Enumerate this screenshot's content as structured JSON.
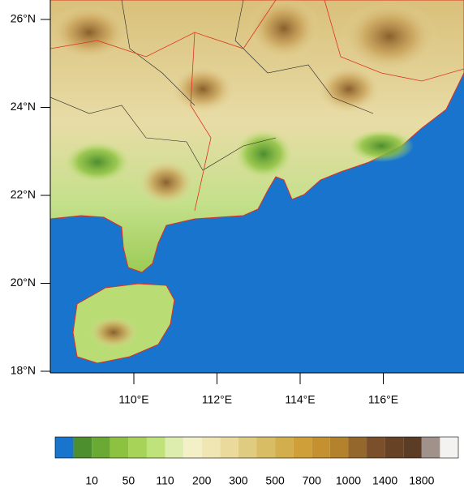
{
  "map": {
    "lat_labels": [
      "26°N",
      "24°N",
      "22°N",
      "20°N",
      "18°N"
    ],
    "lon_labels": [
      "110°E",
      "112°E",
      "114°E",
      "116°E"
    ],
    "colorbar": {
      "colors": [
        "#1874cd",
        "#4d8e2e",
        "#6aa934",
        "#8cc23f",
        "#a7d458",
        "#bfe27a",
        "#dcedae",
        "#f3f0c8",
        "#f0e6b4",
        "#eadb9c",
        "#e0cc80",
        "#d8bd64",
        "#d3ae4c",
        "#cfa03a",
        "#c59130",
        "#b4822c",
        "#94672c",
        "#7b4f29",
        "#674224",
        "#5b3d26",
        "#a0918a",
        "#f4f2f0"
      ],
      "labels": [
        10,
        50,
        110,
        200,
        300,
        500,
        700,
        1000,
        1400,
        1800
      ]
    }
  }
}
